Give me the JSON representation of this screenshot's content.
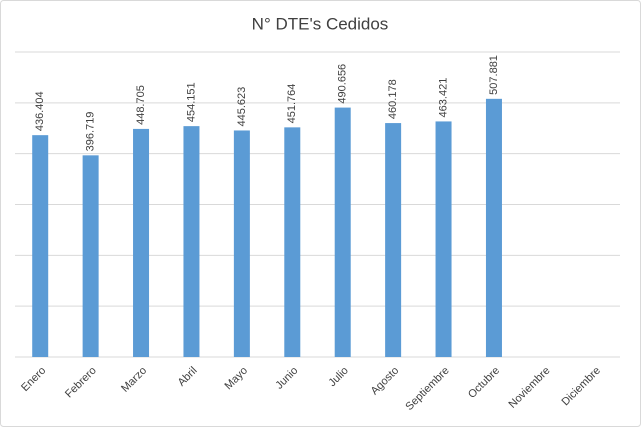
{
  "chart_data": {
    "type": "bar",
    "title": "N° DTE's Cedidos",
    "categories": [
      "Enero",
      "Febrero",
      "Marzo",
      "Abril",
      "Mayo",
      "Junio",
      "Julio",
      "Agosto",
      "Septiembre",
      "Octubre",
      "Noviembre",
      "Diciembre"
    ],
    "values": [
      436404,
      396719,
      448705,
      454151,
      445623,
      451764,
      490656,
      460178,
      463421,
      507881,
      null,
      null
    ],
    "value_labels": [
      "436.404",
      "396.719",
      "448.705",
      "454.151",
      "445.623",
      "451.764",
      "490.656",
      "460.178",
      "463.421",
      "507.881",
      null,
      null
    ],
    "color": "#5b9bd5",
    "ylim": [
      0,
      600000
    ],
    "yticks": [
      0,
      100000,
      200000,
      300000,
      400000,
      500000,
      600000
    ],
    "ytick_labels": false,
    "grid": true
  }
}
